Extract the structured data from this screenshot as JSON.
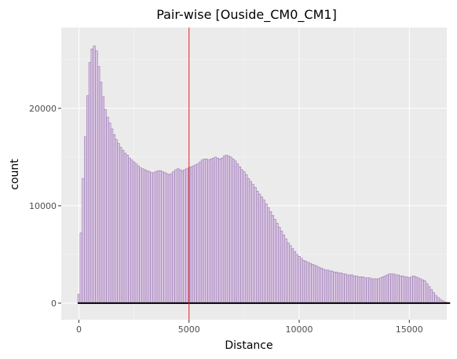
{
  "chart_data": {
    "type": "bar",
    "title": "Pair-wise [Ouside_CM0_CM1]",
    "xlabel": "Distance",
    "ylabel": "count",
    "xlim": [
      -800,
      16700
    ],
    "ylim": [
      -1700,
      28300
    ],
    "x_ticks": [
      0,
      5000,
      10000,
      15000
    ],
    "x_tick_labels": [
      "0",
      "5000",
      "10000",
      "15000"
    ],
    "y_ticks": [
      0,
      10000,
      20000
    ],
    "y_tick_labels": [
      "0",
      "10000",
      "20000"
    ],
    "grid": true,
    "vline": 5000,
    "bin_width": 100,
    "bin_start": -50,
    "counts": [
      900,
      7200,
      12800,
      17100,
      21300,
      24700,
      26100,
      26400,
      25900,
      24300,
      22700,
      21200,
      19900,
      19100,
      18500,
      17900,
      17300,
      16800,
      16400,
      16000,
      15700,
      15400,
      15200,
      14900,
      14700,
      14500,
      14300,
      14100,
      13900,
      13800,
      13700,
      13600,
      13500,
      13400,
      13400,
      13500,
      13600,
      13600,
      13500,
      13400,
      13300,
      13200,
      13300,
      13500,
      13700,
      13800,
      13700,
      13600,
      13700,
      13800,
      13900,
      14000,
      14100,
      14200,
      14300,
      14500,
      14700,
      14800,
      14800,
      14700,
      14800,
      14900,
      15000,
      14900,
      14800,
      14900,
      15100,
      15200,
      15100,
      15000,
      14800,
      14600,
      14300,
      14000,
      13700,
      13500,
      13200,
      12800,
      12500,
      12200,
      11900,
      11500,
      11200,
      10900,
      10600,
      10200,
      9800,
      9400,
      9000,
      8600,
      8200,
      7800,
      7400,
      7000,
      6600,
      6200,
      5900,
      5600,
      5300,
      5000,
      4800,
      4600,
      4400,
      4300,
      4200,
      4100,
      4000,
      3900,
      3800,
      3700,
      3600,
      3500,
      3400,
      3400,
      3300,
      3300,
      3200,
      3200,
      3100,
      3100,
      3000,
      3000,
      2900,
      2900,
      2900,
      2800,
      2800,
      2700,
      2700,
      2700,
      2600,
      2600,
      2600,
      2500,
      2500,
      2500,
      2500,
      2600,
      2700,
      2800,
      2900,
      3000,
      3000,
      3000,
      2900,
      2900,
      2800,
      2800,
      2700,
      2700,
      2600,
      2700,
      2800,
      2700,
      2600,
      2500,
      2400,
      2300,
      2000,
      1700,
      1400,
      1100,
      800,
      600,
      400,
      250,
      150,
      80,
      30
    ]
  },
  "colors": {
    "panel_bg": "#ebebeb",
    "grid_major": "#ffffff",
    "bar_fill": "#d8c4e0",
    "bar_edge": "#9a7bb5",
    "vline": "#e41a1c",
    "baseline": "#000000"
  }
}
